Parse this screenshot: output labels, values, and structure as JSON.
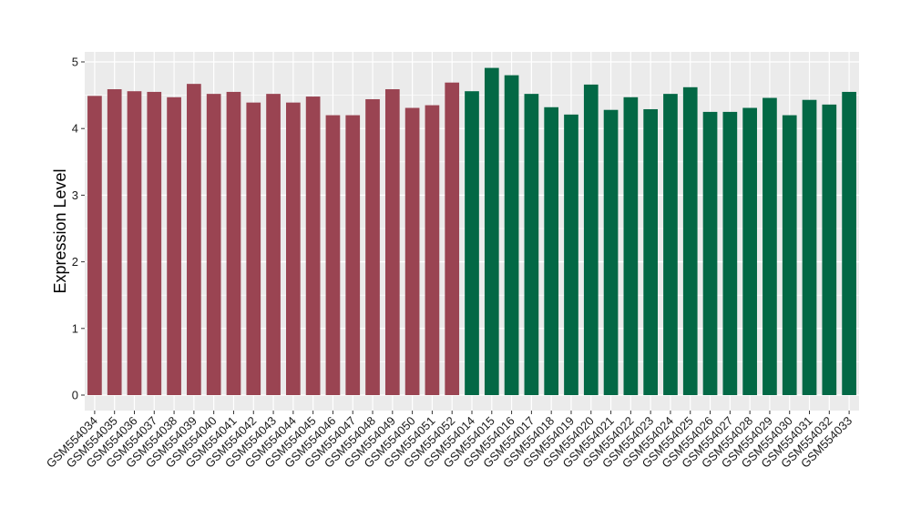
{
  "chart_data": {
    "type": "bar",
    "title": "",
    "xlabel": "",
    "ylabel": "Expression Level",
    "ylim": [
      0,
      5.05
    ],
    "yticks": [
      0,
      1,
      2,
      3,
      4,
      5
    ],
    "grid": true,
    "background": "#ebebeb",
    "grid_color": "#ffffff",
    "categories": [
      "GSM554034",
      "GSM554035",
      "GSM554036",
      "GSM554037",
      "GSM554038",
      "GSM554039",
      "GSM554040",
      "GSM554041",
      "GSM554042",
      "GSM554043",
      "GSM554044",
      "GSM554045",
      "GSM554046",
      "GSM554047",
      "GSM554048",
      "GSM554049",
      "GSM554050",
      "GSM554051",
      "GSM554052",
      "GSM554014",
      "GSM554015",
      "GSM554016",
      "GSM554017",
      "GSM554018",
      "GSM554019",
      "GSM554020",
      "GSM554021",
      "GSM554022",
      "GSM554023",
      "GSM554024",
      "GSM554025",
      "GSM554026",
      "GSM554027",
      "GSM554028",
      "GSM554029",
      "GSM554030",
      "GSM554031",
      "GSM554032",
      "GSM554033"
    ],
    "values": [
      4.49,
      4.59,
      4.56,
      4.55,
      4.47,
      4.67,
      4.52,
      4.55,
      4.39,
      4.52,
      4.39,
      4.48,
      4.2,
      4.2,
      4.44,
      4.59,
      4.31,
      4.35,
      4.69,
      4.56,
      4.91,
      4.8,
      4.52,
      4.32,
      4.21,
      4.66,
      4.28,
      4.47,
      4.29,
      4.52,
      4.62,
      4.25,
      4.25,
      4.31,
      4.46,
      4.2,
      4.43,
      4.36,
      4.55
    ],
    "bar_colors": [
      "#9a4452",
      "#9a4452",
      "#9a4452",
      "#9a4452",
      "#9a4452",
      "#9a4452",
      "#9a4452",
      "#9a4452",
      "#9a4452",
      "#9a4452",
      "#9a4452",
      "#9a4452",
      "#9a4452",
      "#9a4452",
      "#9a4452",
      "#9a4452",
      "#9a4452",
      "#9a4452",
      "#9a4452",
      "#036845",
      "#036845",
      "#036845",
      "#036845",
      "#036845",
      "#036845",
      "#036845",
      "#036845",
      "#036845",
      "#036845",
      "#036845",
      "#036845",
      "#036845",
      "#036845",
      "#036845",
      "#036845",
      "#036845",
      "#036845",
      "#036845",
      "#036845"
    ]
  }
}
